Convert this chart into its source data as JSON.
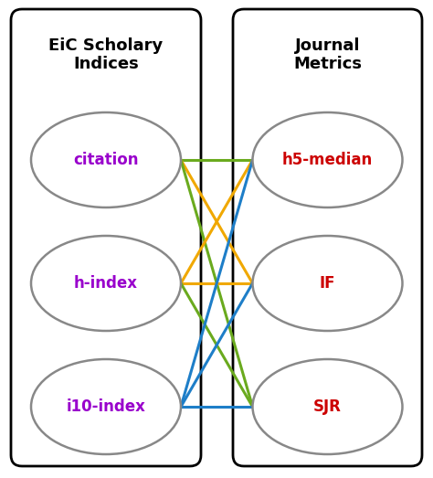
{
  "left_labels": [
    "citation",
    "h-index",
    "i10-index"
  ],
  "right_labels": [
    "h5-median",
    "IF",
    "SJR"
  ],
  "left_header": "EiC Scholary\nIndices",
  "right_header": "Journal\nMetrics",
  "left_label_color": "#9900cc",
  "right_label_color": "#cc0000",
  "header_color": "#000000",
  "box_color": "#000000",
  "oval_color": "#888888",
  "background_color": "#ffffff",
  "connections": [
    {
      "from": 0,
      "to": 0,
      "color": "#6aaa1e",
      "lw": 2.2
    },
    {
      "from": 0,
      "to": 1,
      "color": "#f0a800",
      "lw": 2.2
    },
    {
      "from": 0,
      "to": 2,
      "color": "#6aaa1e",
      "lw": 2.2
    },
    {
      "from": 1,
      "to": 0,
      "color": "#f0a800",
      "lw": 2.2
    },
    {
      "from": 1,
      "to": 1,
      "color": "#f0a800",
      "lw": 2.2
    },
    {
      "from": 1,
      "to": 2,
      "color": "#6aaa1e",
      "lw": 2.2
    },
    {
      "from": 2,
      "to": 0,
      "color": "#1e7ec8",
      "lw": 2.2
    },
    {
      "from": 2,
      "to": 1,
      "color": "#1e7ec8",
      "lw": 2.2
    },
    {
      "from": 2,
      "to": 2,
      "color": "#1e7ec8",
      "lw": 2.2
    }
  ],
  "figsize": [
    4.74,
    5.23
  ],
  "dpi": 100
}
